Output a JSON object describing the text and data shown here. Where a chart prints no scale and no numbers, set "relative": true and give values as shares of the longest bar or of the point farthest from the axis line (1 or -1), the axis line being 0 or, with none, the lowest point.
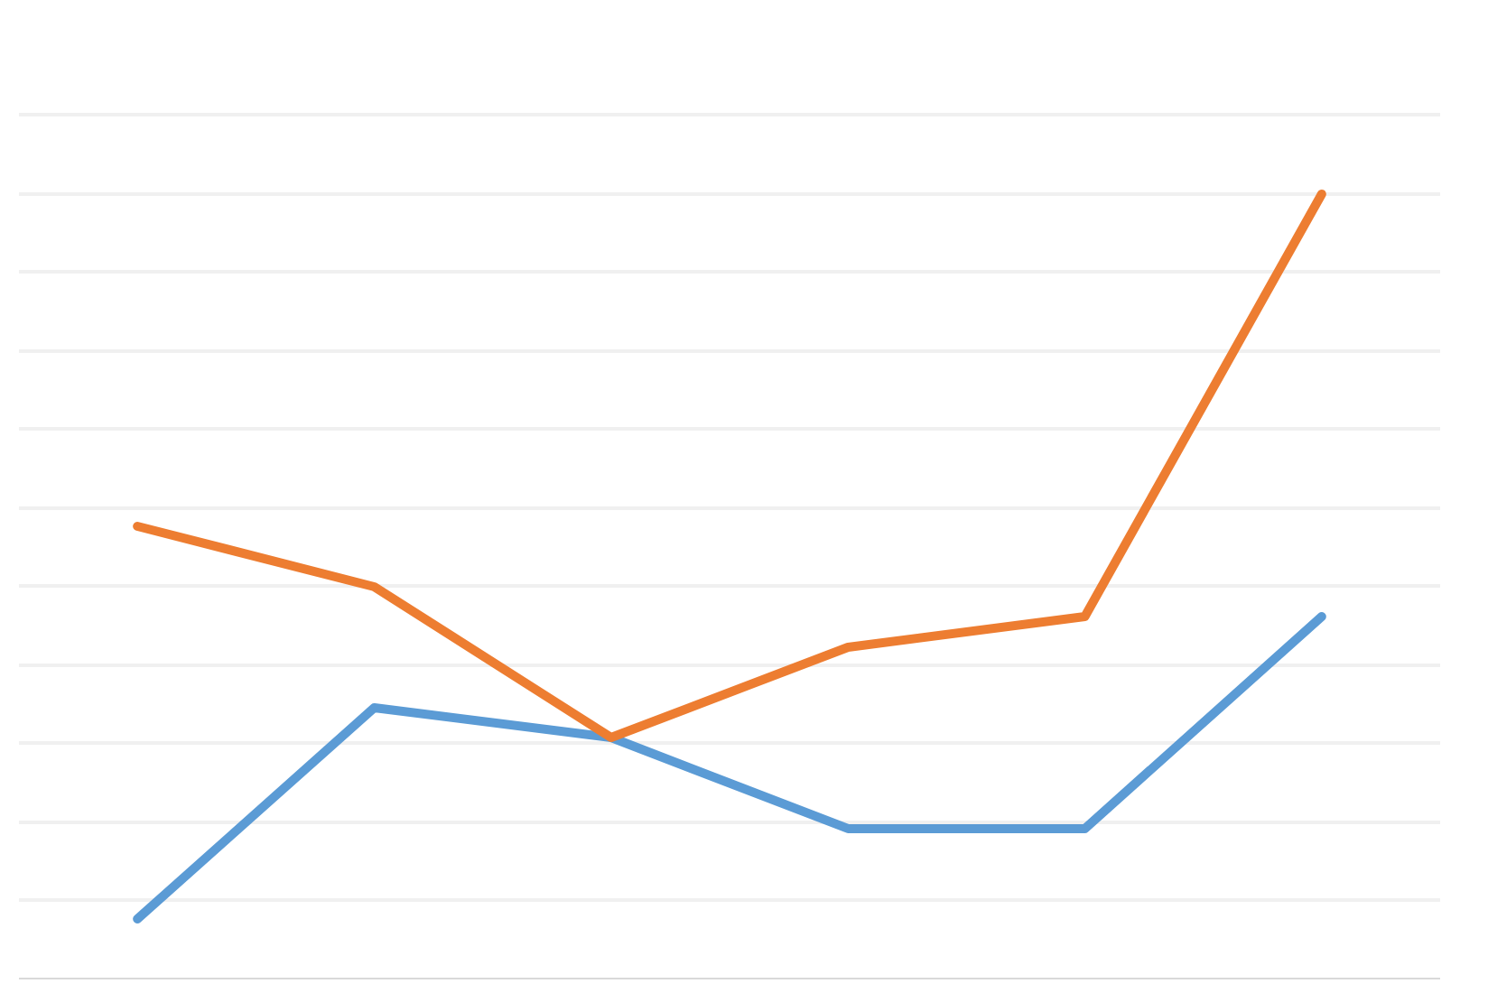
{
  "chart_data": {
    "type": "line",
    "relative": true,
    "grid": "y",
    "categories": [
      null,
      null,
      null,
      null,
      null,
      null
    ],
    "series": [
      {
        "color": "#5b9bd5",
        "values": [
          0.077,
          0.346,
          0.308,
          0.192,
          0.192,
          0.462
        ]
      },
      {
        "color": "#ed7d31",
        "values": [
          0.577,
          0.5,
          0.308,
          0.423,
          0.462,
          1
        ]
      }
    ]
  }
}
